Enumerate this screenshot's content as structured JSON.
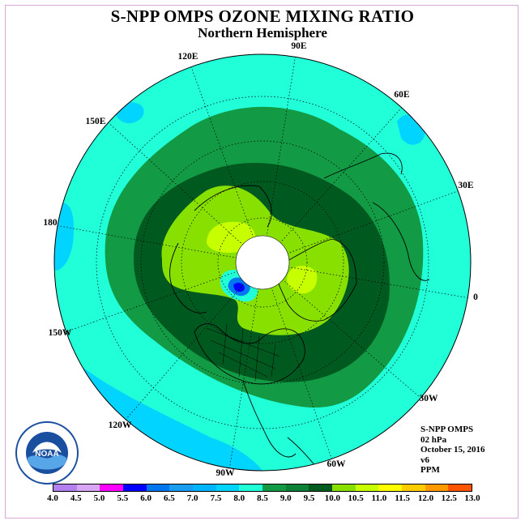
{
  "title": "S-NPP OMPS OZONE MIXING RATIO",
  "subtitle": "Northern Hemisphere",
  "longitude_labels": {
    "e90": "90E",
    "e120": "120E",
    "e60": "60E",
    "e150": "150E",
    "e30": "30E",
    "w180": "180",
    "e0": "0",
    "w150": "150W",
    "w30": "30W",
    "w120": "120W",
    "w60": "60W",
    "w90": "90W"
  },
  "info": {
    "line1": "S-NPP OMPS",
    "line2": "02 hPa",
    "line3": "October 15, 2016",
    "line4": "v6",
    "line5": "PPM"
  },
  "colorbar": {
    "ticks": [
      "4.0",
      "4.5",
      "5.0",
      "5.5",
      "6.0",
      "6.5",
      "7.0",
      "7.5",
      "8.0",
      "8.5",
      "9.0",
      "9.5",
      "10.0",
      "10.5",
      "11.0",
      "11.5",
      "12.0",
      "12.5",
      "13.0"
    ],
    "colors": [
      "#b380f0",
      "#d9a6f5",
      "#ff00ff",
      "#0000ff",
      "#0077ee",
      "#1a9cf0",
      "#00b4ff",
      "#00d4ff",
      "#20ffd8",
      "#129a44",
      "#0b8036",
      "#005a20",
      "#88e000",
      "#c8ff00",
      "#ffff00",
      "#ffcc00",
      "#ff9900",
      "#ff5500",
      "#ff0000",
      "#7a4a2a"
    ]
  },
  "logo": {
    "text": "NOAA"
  }
}
